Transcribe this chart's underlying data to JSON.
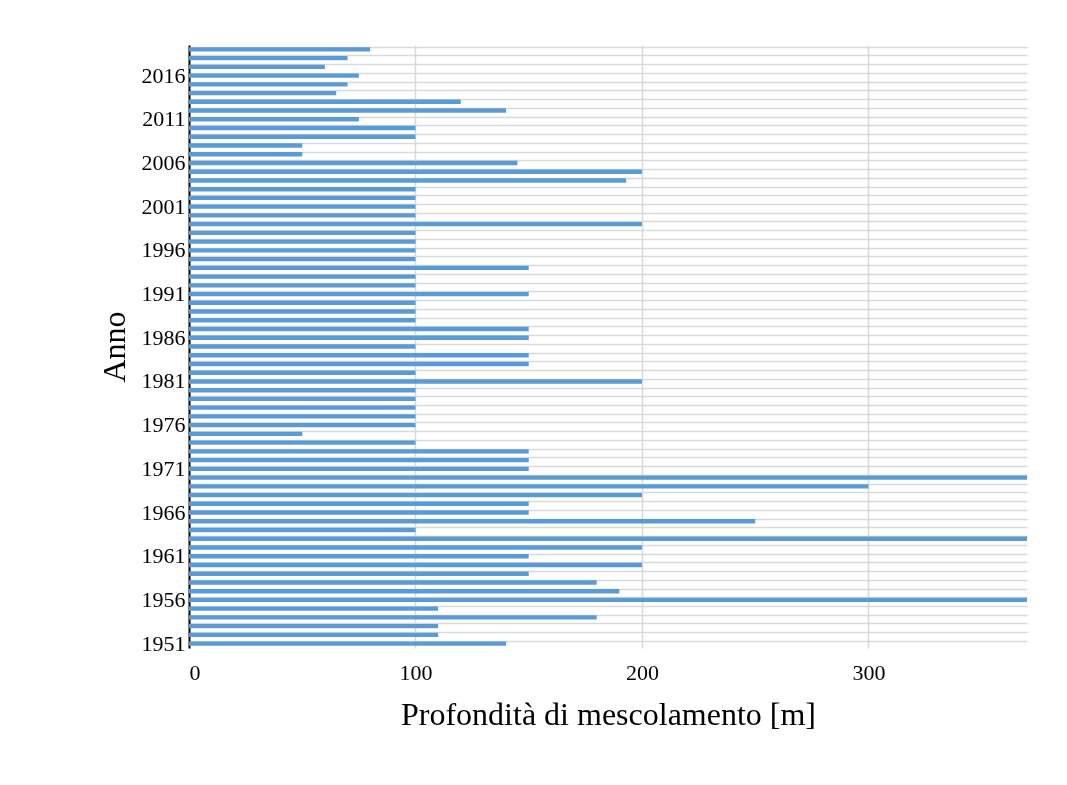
{
  "chart_data": {
    "type": "bar",
    "orientation": "horizontal",
    "xlabel": "Profondità di mescolamento [m]",
    "ylabel": "Anno",
    "categories": [
      null,
      null,
      null,
      "2016",
      null,
      null,
      null,
      null,
      "2011",
      null,
      null,
      null,
      null,
      "2006",
      null,
      null,
      null,
      null,
      "2001",
      null,
      null,
      null,
      null,
      "1996",
      null,
      null,
      null,
      null,
      "1991",
      null,
      null,
      null,
      null,
      "1986",
      null,
      null,
      null,
      null,
      "1981",
      null,
      null,
      null,
      null,
      "1976",
      null,
      null,
      null,
      null,
      "1971",
      null,
      null,
      null,
      null,
      "1966",
      null,
      null,
      null,
      null,
      "1961",
      null,
      null,
      null,
      null,
      "1956",
      null,
      null,
      null,
      null,
      "1951"
    ],
    "values": [
      80,
      70,
      60,
      75,
      70,
      65,
      120,
      140,
      75,
      100,
      100,
      50,
      50,
      145,
      200,
      193,
      100,
      100,
      100,
      100,
      200,
      100,
      100,
      100,
      100,
      150,
      100,
      100,
      150,
      100,
      100,
      100,
      150,
      150,
      100,
      150,
      150,
      100,
      200,
      100,
      100,
      100,
      100,
      100,
      50,
      100,
      150,
      150,
      150,
      370,
      300,
      200,
      150,
      150,
      250,
      100,
      370,
      200,
      150,
      200,
      150,
      180,
      190,
      370,
      110,
      180,
      110,
      110,
      140
    ],
    "color": "#5b9bd5",
    "xlim": [
      0,
      370
    ],
    "xticks": [
      0,
      100,
      200,
      300
    ],
    "grid": true
  }
}
